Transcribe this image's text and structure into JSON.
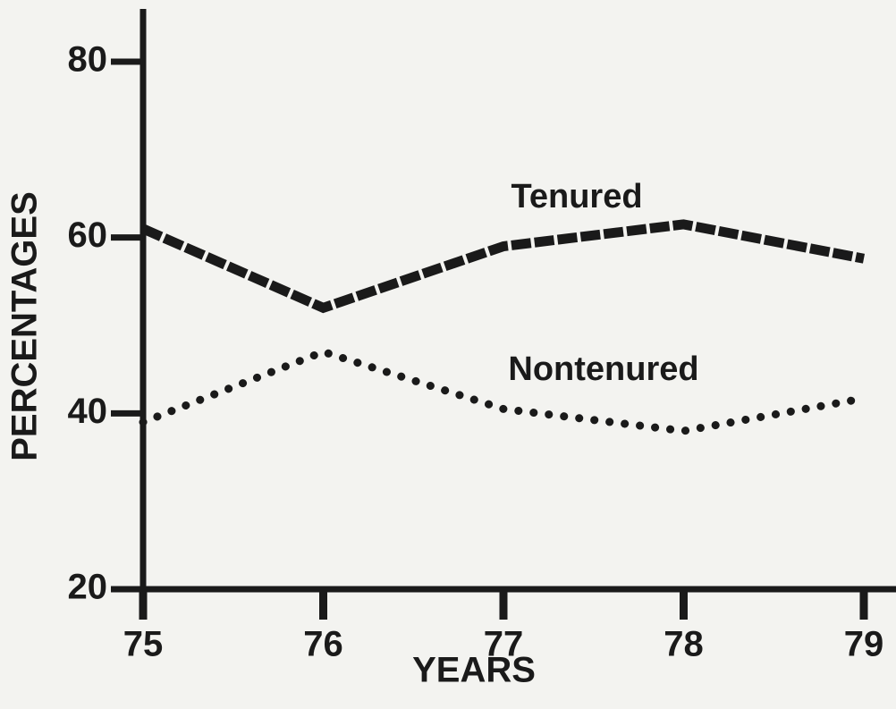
{
  "chart_data": {
    "type": "line",
    "x_label": "YEARS",
    "y_label": "PERCENTAGES",
    "categories": [
      "75",
      "76",
      "77",
      "78",
      "79"
    ],
    "series": [
      {
        "name": "Tenured",
        "color": "#1a1a1a",
        "style": "dashed",
        "values": [
          61,
          52,
          59,
          61.5,
          57.6
        ]
      },
      {
        "name": "Nontenured",
        "color": "#1a1a1a",
        "style": "dotted",
        "values": [
          39,
          47,
          40.5,
          38,
          41.7
        ]
      }
    ],
    "ylim": [
      20,
      86
    ],
    "yticks": [
      20,
      40,
      60,
      80
    ],
    "grid": false
  }
}
